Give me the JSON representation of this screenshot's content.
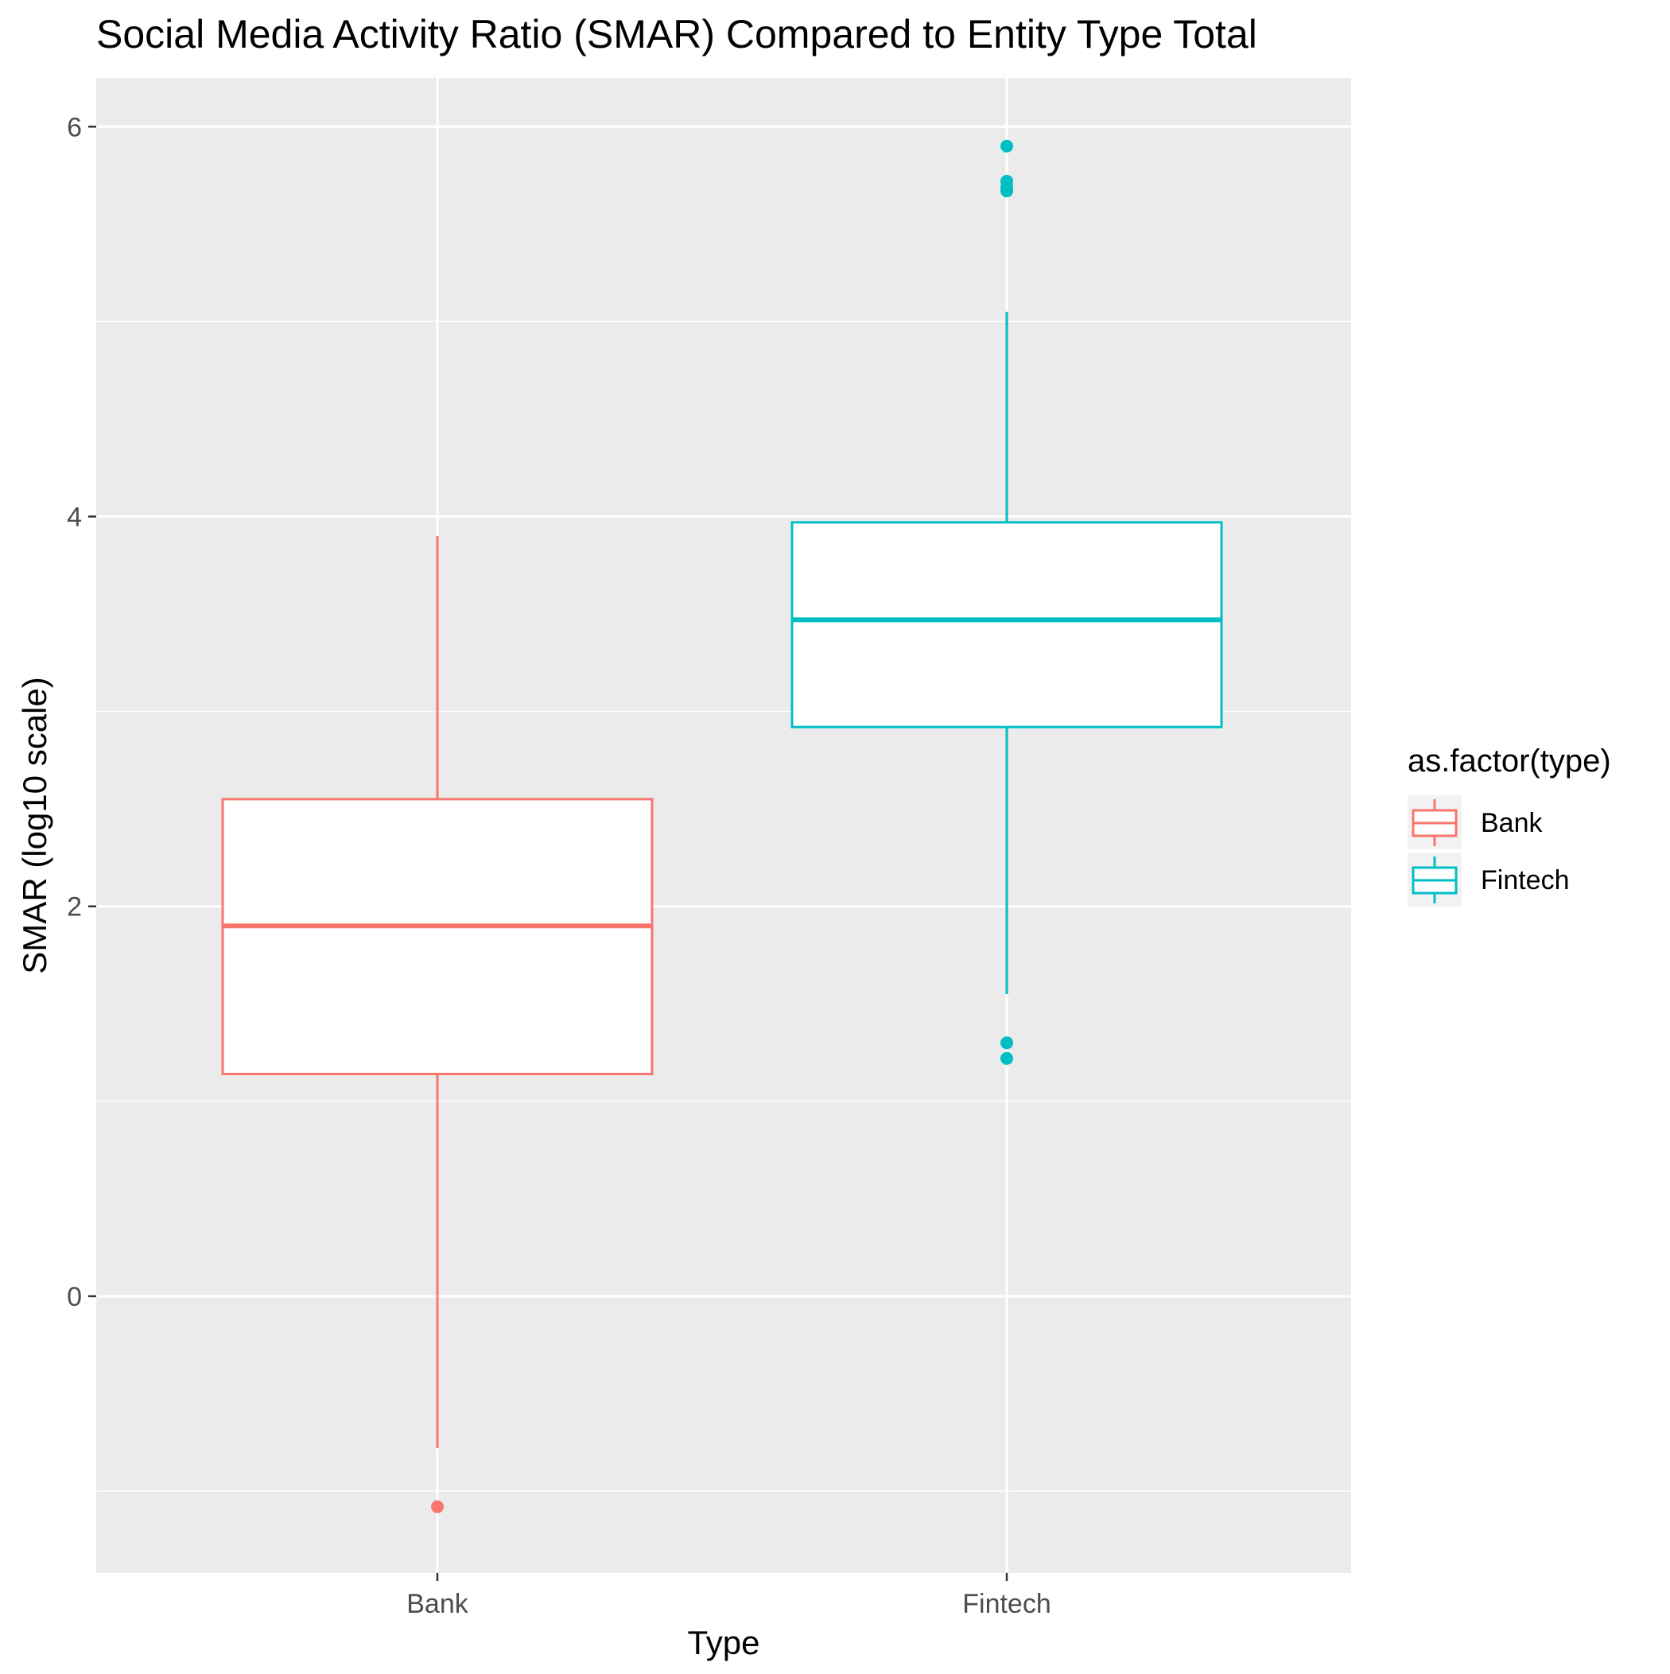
{
  "chart_data": {
    "type": "boxplot",
    "title": "Social Media Activity Ratio (SMAR) Compared to Entity Type Total",
    "xlabel": "Type",
    "ylabel": "SMAR (log10 scale)",
    "categories": [
      "Bank",
      "Fintech"
    ],
    "ylim": [
      -1.42,
      6.25
    ],
    "y_ticks": [
      0,
      2,
      4,
      6
    ],
    "y_minor_ticks": [
      -1,
      1,
      3,
      5
    ],
    "grid": true,
    "legend": {
      "title": "as.factor(type)",
      "position": "right",
      "entries": [
        "Bank",
        "Fintech"
      ]
    },
    "colors": {
      "Bank": "#F8766D",
      "Fintech": "#00BFC4",
      "panel_background": "#EBEBEB",
      "grid": "#FFFFFF"
    },
    "series": [
      {
        "name": "Bank",
        "whisker_low": -0.78,
        "q1": 1.14,
        "median": 1.9,
        "q3": 2.55,
        "whisker_high": 3.9,
        "outliers": [
          -1.08
        ]
      },
      {
        "name": "Fintech",
        "whisker_low": 1.55,
        "q1": 2.92,
        "median": 3.47,
        "q3": 3.97,
        "whisker_high": 5.05,
        "outliers": [
          5.9,
          5.72,
          5.69,
          5.67,
          1.3,
          1.22
        ]
      }
    ]
  }
}
